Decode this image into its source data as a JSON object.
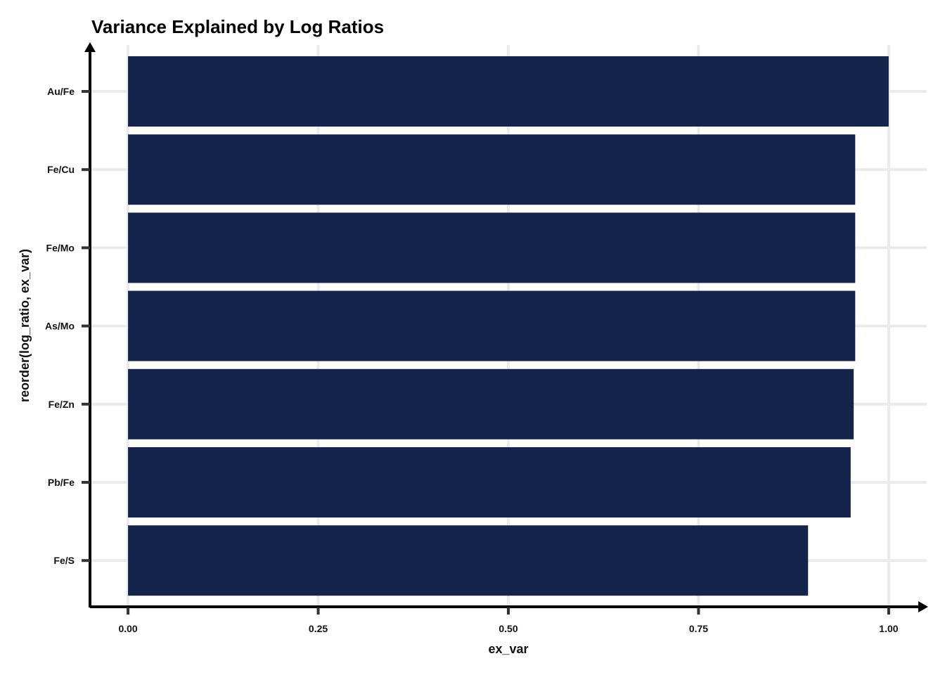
{
  "chart_data": {
    "type": "bar",
    "orientation": "horizontal",
    "title": "Variance Explained by Log Ratios",
    "xlabel": "ex_var",
    "ylabel": "reorder(log_ratio, ex_var)",
    "categories": [
      "Au/Fe",
      "Fe/Cu",
      "Fe/Mo",
      "As/Mo",
      "Fe/Zn",
      "Pb/Fe",
      "Fe/S"
    ],
    "values": [
      1.0,
      0.956,
      0.956,
      0.956,
      0.954,
      0.95,
      0.894
    ],
    "xlim": [
      -0.05,
      1.05
    ],
    "xticks": [
      0.0,
      0.25,
      0.5,
      0.75,
      1.0
    ],
    "xtick_labels": [
      "0.00",
      "0.25",
      "0.50",
      "0.75",
      "1.00"
    ],
    "grid": true,
    "bar_color": "#14244a",
    "grid_color": "#ebebeb",
    "axis_color": "#000000"
  }
}
